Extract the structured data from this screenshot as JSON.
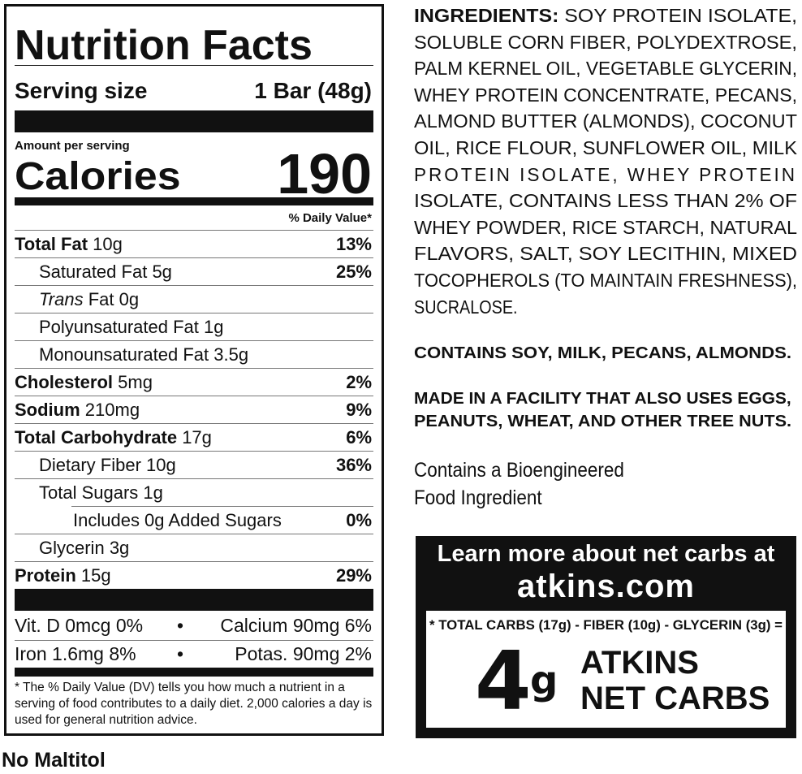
{
  "nutrition_facts": {
    "title": "Nutrition Facts",
    "serving_size_label": "Serving size",
    "serving_size_value": "1 Bar (48g)",
    "amount_per_serving": "Amount per serving",
    "calories_label": "Calories",
    "calories_value": "190",
    "daily_value_header": "% Daily Value*",
    "nutrients": [
      {
        "name": "Total Fat",
        "amount": "10g",
        "dv": "13%"
      },
      {
        "name": "Saturated Fat",
        "amount": "5g",
        "dv": "25%"
      },
      {
        "name_italic": "Trans",
        "name": "Fat",
        "amount": "0g",
        "dv": ""
      },
      {
        "name": "Polyunsaturated Fat",
        "amount": "1g",
        "dv": ""
      },
      {
        "name": "Monounsaturated Fat",
        "amount": "3.5g",
        "dv": ""
      },
      {
        "name": "Cholesterol",
        "amount": "5mg",
        "dv": "2%"
      },
      {
        "name": "Sodium",
        "amount": "210mg",
        "dv": "9%"
      },
      {
        "name": "Total Carbohydrate",
        "amount": "17g",
        "dv": "6%"
      },
      {
        "name": "Dietary Fiber",
        "amount": "10g",
        "dv": "36%"
      },
      {
        "name": "Total Sugars",
        "amount": "1g",
        "dv": ""
      },
      {
        "name": "Includes 0g Added Sugars",
        "amount": "",
        "dv": "0%"
      },
      {
        "name": "Glycerin",
        "amount": "3g",
        "dv": ""
      },
      {
        "name": "Protein",
        "amount": "15g",
        "dv": "29%"
      }
    ],
    "vitamins": [
      {
        "left": "Vit. D 0mcg 0%",
        "right": "Calcium 90mg 6%"
      },
      {
        "left": "Iron 1.6mg 8%",
        "right": "Potas. 90mg 2%"
      }
    ],
    "bullet": "•",
    "footnote": "* The % Daily Value (DV) tells you how much a nutrient in a serving of food contributes to a daily diet. 2,000 calories a day is used for general nutrition advice."
  },
  "no_maltitol": "No Maltitol",
  "ingredients": {
    "label": "INGREDIENTS:",
    "lines": [
      "SOY PROTEIN ISOLATE,",
      "SOLUBLE CORN FIBER, POLYDEXTROSE,",
      "PALM KERNEL OIL, VEGETABLE GLYCERIN,",
      "WHEY PROTEIN CONCENTRATE, PECANS,",
      "ALMOND BUTTER (ALMONDS), COCONUT",
      "OIL, RICE FLOUR, SUNFLOWER OIL, MILK",
      "PROTEIN ISOLATE, WHEY PROTEIN",
      "ISOLATE, CONTAINS LESS THAN 2% OF",
      "WHEY POWDER, RICE STARCH, NATURAL",
      "FLAVORS, SALT, SOY LECITHIN, MIXED",
      "TOCOPHEROLS (TO MAINTAIN FRESHNESS),",
      "SUCRALOSE."
    ]
  },
  "allergens": "CONTAINS SOY, MILK, PECANS, ALMONDS.",
  "facility": [
    "MADE IN A FACILITY THAT ALSO USES EGGS,",
    "PEANUTS, WHEAT, AND OTHER TREE NUTS."
  ],
  "bioengineered": [
    "Contains a Bioengineered",
    "Food Ingredient"
  ],
  "net_carbs": {
    "learn_more": "Learn more about net carbs at",
    "website": "atkins.com",
    "formula": "* TOTAL CARBS (17g) - FIBER (10g) - GLYCERIN (3g) =",
    "value": "4",
    "unit": "g",
    "line1": "ATKINS",
    "line2": "NET CARBS"
  }
}
